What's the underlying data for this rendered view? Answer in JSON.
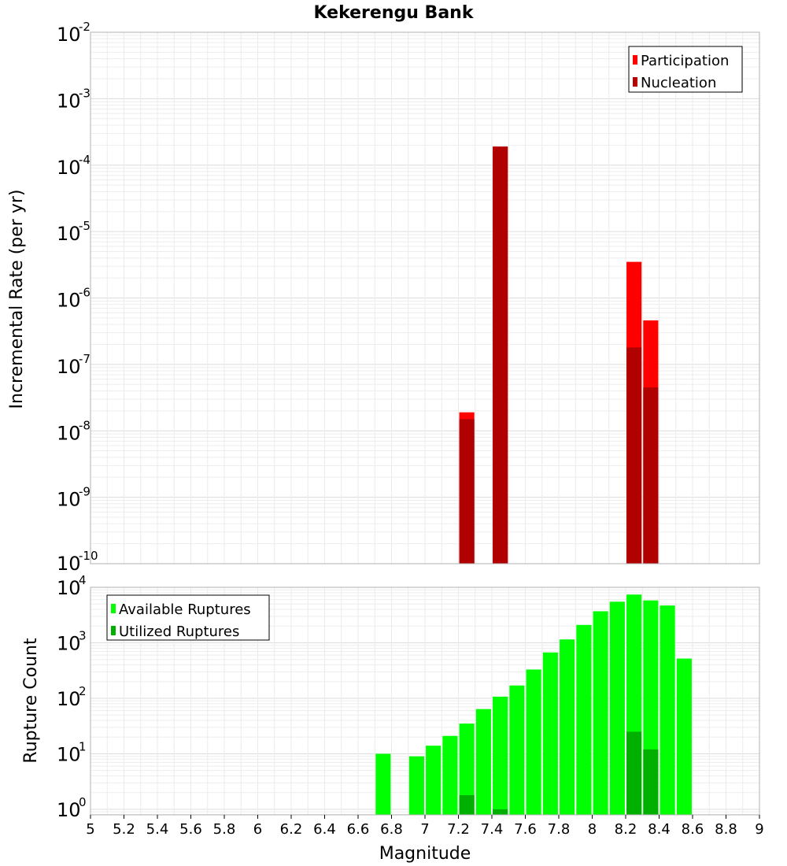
{
  "chart_data": [
    {
      "type": "bar",
      "title": "Kekerengu Bank",
      "xlabel": "",
      "ylabel": "Incremental Rate (per yr)",
      "yscale": "log",
      "ylim_exponents": [
        -10,
        -2
      ],
      "y_tick_exponents": [
        "-10",
        "-9",
        "-8",
        "-7",
        "-6",
        "-5",
        "-4",
        "-3",
        "-2"
      ],
      "xlim": [
        5,
        9
      ],
      "grid": true,
      "legend": "top-right",
      "series": [
        {
          "name": "Participation",
          "color": "#ff0000",
          "x": [
            7.25,
            7.45,
            8.25,
            8.35
          ],
          "values": [
            1.9e-08,
            0.00019,
            3.5e-06,
            4.6e-07
          ]
        },
        {
          "name": "Nucleation",
          "color": "#b00000",
          "x": [
            7.25,
            7.45,
            8.25,
            8.35
          ],
          "values": [
            1.5e-08,
            0.00019,
            1.8e-07,
            4.5e-08
          ]
        }
      ]
    },
    {
      "type": "bar",
      "title": "",
      "xlabel": "Magnitude",
      "ylabel": "Rupture Count",
      "yscale": "log",
      "ylim_exponents": [
        -0.1,
        4
      ],
      "y_tick_exponents": [
        "0",
        "1",
        "2",
        "3",
        "4"
      ],
      "xlim": [
        5,
        9
      ],
      "x_tick_labels": [
        "5",
        "5.2",
        "5.4",
        "5.6",
        "5.8",
        "6",
        "6.2",
        "6.4",
        "6.6",
        "6.8",
        "7",
        "7.2",
        "7.4",
        "7.6",
        "7.8",
        "8",
        "8.2",
        "8.4",
        "8.6",
        "8.8",
        "9"
      ],
      "grid": true,
      "legend": "top-left",
      "series": [
        {
          "name": "Available Ruptures",
          "color": "#00ff00",
          "x": [
            6.75,
            6.95,
            7.05,
            7.15,
            7.25,
            7.35,
            7.45,
            7.55,
            7.65,
            7.75,
            7.85,
            7.95,
            8.05,
            8.15,
            8.25,
            8.35,
            8.45,
            8.55
          ],
          "values": [
            10,
            9,
            14,
            21,
            35,
            64,
            107,
            170,
            330,
            670,
            1150,
            2100,
            3700,
            5500,
            7400,
            5800,
            4700,
            520
          ]
        },
        {
          "name": "Utilized Ruptures",
          "color": "#00b000",
          "x": [
            7.25,
            7.45,
            8.25,
            8.35
          ],
          "values": [
            1.8,
            1,
            25,
            12
          ]
        }
      ]
    }
  ]
}
